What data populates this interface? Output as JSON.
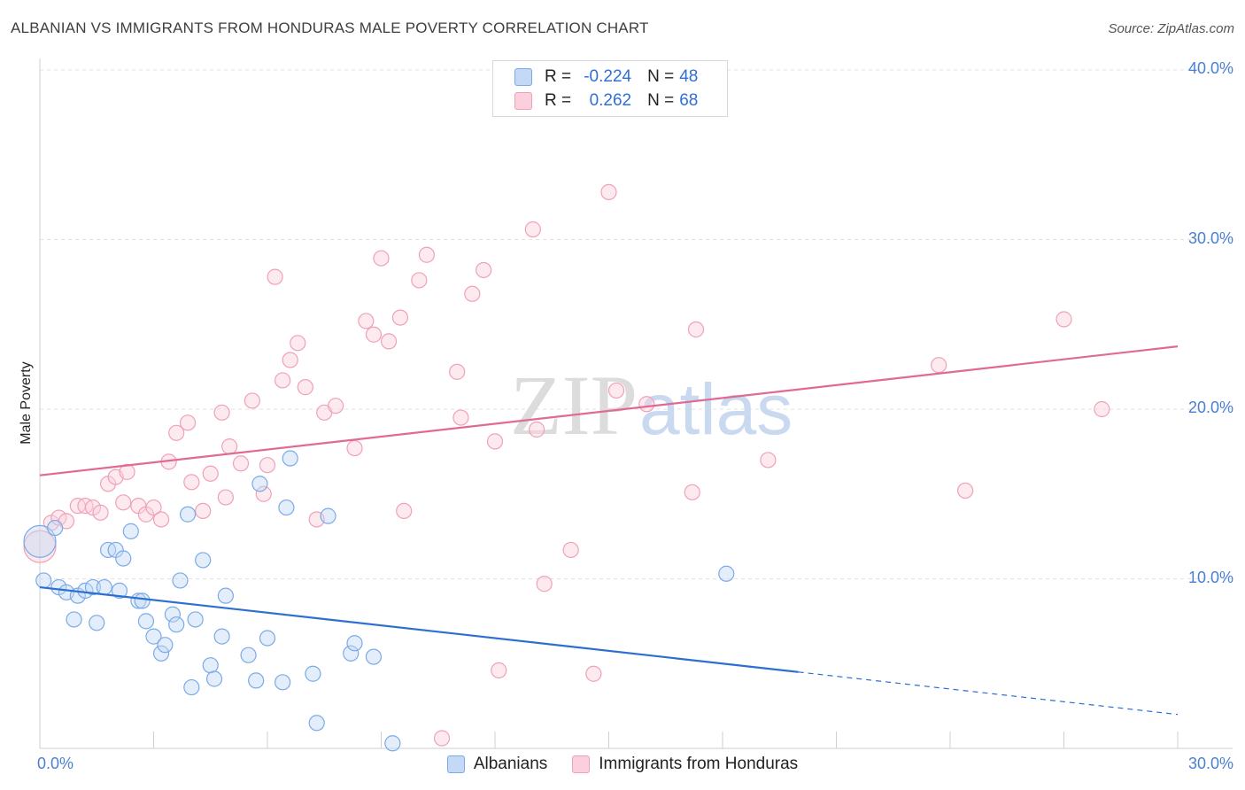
{
  "header": {
    "title": "ALBANIAN VS IMMIGRANTS FROM HONDURAS MALE POVERTY CORRELATION CHART",
    "source": "Source: ZipAtlas.com"
  },
  "legend_top": {
    "rows": [
      {
        "r_label": "R =",
        "r_value": "-0.224",
        "n_label": "N =",
        "n_value": "48"
      },
      {
        "r_label": "R =",
        "r_value": "0.262",
        "n_label": "N =",
        "n_value": "68"
      }
    ]
  },
  "watermark": {
    "part1": "ZIP",
    "part2": "atlas"
  },
  "chart_data": {
    "type": "scatter",
    "title": "ALBANIAN VS IMMIGRANTS FROM HONDURAS MALE POVERTY CORRELATION CHART",
    "xlabel": "",
    "ylabel": "Male Poverty",
    "xlim": [
      0,
      30
    ],
    "ylim": [
      0,
      40
    ],
    "x_tick_labels": [
      "0.0%",
      "30.0%"
    ],
    "y_ticks": [
      10,
      20,
      30,
      40
    ],
    "y_tick_labels": [
      "10.0%",
      "20.0%",
      "30.0%",
      "40.0%"
    ],
    "grid": true,
    "legend_position": "bottom",
    "colors": {
      "albanians": "#7aaae8",
      "honduras": "#f0a0b8",
      "albanians_line": "#2c6fd0",
      "honduras_line": "#e06a94",
      "tick_text": "#4a7fd4"
    },
    "series": [
      {
        "name": "Albanians",
        "r": -0.224,
        "n": 48,
        "trend": {
          "x0": 0,
          "y0": 9.5,
          "x1": 20,
          "y1": 4.5,
          "dashed_to_x": 30,
          "dashed_to_y": 2.0
        },
        "points": [
          [
            0.0,
            12.2
          ],
          [
            0.1,
            9.9
          ],
          [
            0.4,
            13.0
          ],
          [
            0.5,
            9.5
          ],
          [
            0.7,
            9.2
          ],
          [
            0.9,
            7.6
          ],
          [
            1.0,
            9.0
          ],
          [
            1.2,
            9.3
          ],
          [
            1.4,
            9.5
          ],
          [
            1.5,
            7.4
          ],
          [
            1.7,
            9.5
          ],
          [
            1.8,
            11.7
          ],
          [
            2.0,
            11.7
          ],
          [
            2.2,
            11.2
          ],
          [
            2.1,
            9.3
          ],
          [
            2.4,
            12.8
          ],
          [
            2.6,
            8.7
          ],
          [
            2.7,
            8.7
          ],
          [
            2.8,
            7.5
          ],
          [
            3.0,
            6.6
          ],
          [
            3.2,
            5.6
          ],
          [
            3.3,
            6.1
          ],
          [
            3.5,
            7.9
          ],
          [
            3.6,
            7.3
          ],
          [
            3.7,
            9.9
          ],
          [
            3.9,
            13.8
          ],
          [
            4.0,
            3.6
          ],
          [
            4.1,
            7.6
          ],
          [
            4.3,
            11.1
          ],
          [
            4.5,
            4.9
          ],
          [
            4.6,
            4.1
          ],
          [
            4.8,
            6.6
          ],
          [
            4.9,
            9.0
          ],
          [
            5.5,
            5.5
          ],
          [
            5.7,
            4.0
          ],
          [
            5.8,
            15.6
          ],
          [
            6.0,
            6.5
          ],
          [
            6.4,
            3.9
          ],
          [
            6.5,
            14.2
          ],
          [
            6.6,
            17.1
          ],
          [
            7.2,
            4.4
          ],
          [
            7.3,
            1.5
          ],
          [
            7.6,
            13.7
          ],
          [
            8.2,
            5.6
          ],
          [
            8.3,
            6.2
          ],
          [
            8.8,
            5.4
          ],
          [
            9.3,
            0.3
          ],
          [
            18.1,
            10.3
          ]
        ]
      },
      {
        "name": "Immigrants from Honduras",
        "r": 0.262,
        "n": 68,
        "trend": {
          "x0": 0,
          "y0": 16.1,
          "x1": 30,
          "y1": 23.7
        },
        "points": [
          [
            0.0,
            11.9
          ],
          [
            0.3,
            13.3
          ],
          [
            0.5,
            13.6
          ],
          [
            0.7,
            13.4
          ],
          [
            1.0,
            14.3
          ],
          [
            1.2,
            14.3
          ],
          [
            1.4,
            14.2
          ],
          [
            1.6,
            13.9
          ],
          [
            1.8,
            15.6
          ],
          [
            2.0,
            16.0
          ],
          [
            2.2,
            14.5
          ],
          [
            2.3,
            16.3
          ],
          [
            2.6,
            14.3
          ],
          [
            2.8,
            13.8
          ],
          [
            3.0,
            14.2
          ],
          [
            3.2,
            13.5
          ],
          [
            3.4,
            16.9
          ],
          [
            3.6,
            18.6
          ],
          [
            3.9,
            19.2
          ],
          [
            4.0,
            15.7
          ],
          [
            4.3,
            14.0
          ],
          [
            4.5,
            16.2
          ],
          [
            4.8,
            19.8
          ],
          [
            4.9,
            14.8
          ],
          [
            5.0,
            17.8
          ],
          [
            5.3,
            16.8
          ],
          [
            5.6,
            20.5
          ],
          [
            5.9,
            15.0
          ],
          [
            6.0,
            16.7
          ],
          [
            6.2,
            27.8
          ],
          [
            6.4,
            21.7
          ],
          [
            6.6,
            22.9
          ],
          [
            6.8,
            23.9
          ],
          [
            7.0,
            21.3
          ],
          [
            7.3,
            13.5
          ],
          [
            7.5,
            19.8
          ],
          [
            7.8,
            20.2
          ],
          [
            8.3,
            17.7
          ],
          [
            8.6,
            25.2
          ],
          [
            8.8,
            24.4
          ],
          [
            9.0,
            28.9
          ],
          [
            9.2,
            24.0
          ],
          [
            9.5,
            25.4
          ],
          [
            9.6,
            14.0
          ],
          [
            10.0,
            27.6
          ],
          [
            10.2,
            29.1
          ],
          [
            11.0,
            22.2
          ],
          [
            11.1,
            19.5
          ],
          [
            11.4,
            26.8
          ],
          [
            11.7,
            28.2
          ],
          [
            12.0,
            18.1
          ],
          [
            13.0,
            30.6
          ],
          [
            13.1,
            18.8
          ],
          [
            13.3,
            9.7
          ],
          [
            14.0,
            11.7
          ],
          [
            14.6,
            4.4
          ],
          [
            15.0,
            32.8
          ],
          [
            15.2,
            21.1
          ],
          [
            16.0,
            20.3
          ],
          [
            17.2,
            15.1
          ],
          [
            17.3,
            24.7
          ],
          [
            19.2,
            17.0
          ],
          [
            23.7,
            22.6
          ],
          [
            24.4,
            15.2
          ],
          [
            27.0,
            25.3
          ],
          [
            28.0,
            20.0
          ],
          [
            12.1,
            4.6
          ],
          [
            10.6,
            0.6
          ]
        ]
      }
    ]
  },
  "legend_bottom": {
    "items": [
      {
        "label": "Albanians"
      },
      {
        "label": "Immigrants from Honduras"
      }
    ]
  }
}
